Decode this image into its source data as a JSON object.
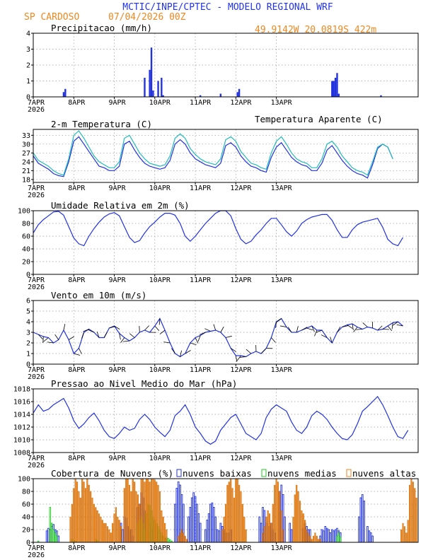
{
  "header": {
    "title": "MCTIC/INPE/CPTEC - MODELO REGIONAL WRF",
    "location": "SP CARDOSO",
    "date": "07/04/2026 00Z",
    "coords": "49.9142W 20.0819S 422m"
  },
  "x_ticks": [
    "7APR",
    "8APR",
    "9APR",
    "10APR",
    "11APR",
    "12APR",
    "13APR"
  ],
  "year_label": "2026",
  "colors": {
    "title": "#2233ee",
    "orange": "#ee8822",
    "blue": "#2233dd",
    "cyan": "#22bbbb",
    "green": "#22cc22"
  },
  "chart_data": [
    {
      "type": "bar",
      "title": "Precipitacao (mm/h)",
      "ylim": [
        0,
        4
      ],
      "yticks": [
        "0",
        "1",
        "2",
        "3",
        "4"
      ],
      "x_hours": [
        18,
        19,
        66,
        69,
        70,
        71,
        74,
        76,
        77,
        99,
        111,
        121,
        122,
        177,
        178,
        179,
        180,
        181,
        206
      ],
      "values": [
        0.3,
        0.5,
        1.2,
        1.7,
        3.1,
        0.4,
        1.0,
        1.2,
        0.1,
        0.1,
        0.2,
        0.3,
        0.5,
        1.0,
        1.0,
        1.2,
        1.5,
        0.2,
        0.1
      ]
    },
    {
      "type": "line",
      "title": "2-m Temperatura (C)",
      "legend": "Temperatura Aparente (C)",
      "ylim": [
        17,
        35
      ],
      "yticks": [
        "18",
        "21",
        "24",
        "27",
        "30",
        "33"
      ],
      "x_step_hours": 3,
      "series": [
        {
          "values": [
            26,
            23.5,
            22.5,
            21.5,
            20,
            19.3,
            19,
            24,
            31,
            32.5,
            30,
            27.5,
            25,
            22.5,
            22,
            21,
            21,
            22.5,
            30,
            31,
            28,
            25.5,
            23.5,
            22.5,
            22,
            21.5,
            22,
            24.5,
            30,
            31.5,
            30,
            27,
            25,
            24,
            23,
            22.5,
            22,
            23.5,
            29.5,
            30.5,
            29,
            26,
            24,
            22.5,
            22,
            21,
            20.5,
            25.5,
            29,
            30.5,
            28,
            25.5,
            24,
            23,
            22.5,
            21,
            21,
            23.5,
            28,
            29.5,
            27,
            24.5,
            22.5,
            21,
            20,
            19.5,
            18.5,
            23,
            28.5,
            30,
            29,
            25
          ]
        },
        {
          "values": [
            27,
            24.5,
            23.5,
            22.5,
            21,
            20,
            19.5,
            25,
            33,
            34.5,
            32,
            29,
            26,
            24,
            23,
            22,
            22,
            24,
            32,
            33,
            30,
            27,
            25,
            23.5,
            23,
            22.5,
            23,
            26,
            32,
            33.5,
            32,
            28.5,
            26.5,
            25,
            24,
            23.5,
            23,
            25,
            31.5,
            32.5,
            31,
            27.5,
            25.5,
            23.5,
            23,
            22,
            21.5,
            27,
            31,
            32.5,
            30,
            27,
            25,
            24,
            23.5,
            22,
            22,
            25,
            30,
            31,
            29,
            26,
            24,
            22,
            21,
            20.5,
            19.5,
            24,
            29,
            30,
            29,
            25
          ]
        }
      ]
    },
    {
      "type": "line",
      "title": "Umidade Relativa em 2m (%)",
      "ylim": [
        0,
        100
      ],
      "yticks": [
        "0",
        "20",
        "40",
        "60",
        "80",
        "100"
      ],
      "x_step_hours": 3,
      "series": [
        {
          "values": [
            65,
            78,
            86,
            92,
            98,
            99,
            93,
            75,
            57,
            48,
            45,
            60,
            72,
            82,
            90,
            95,
            97,
            92,
            75,
            58,
            50,
            53,
            65,
            75,
            82,
            90,
            96,
            96,
            93,
            80,
            60,
            52,
            60,
            70,
            80,
            88,
            96,
            100,
            100,
            92,
            72,
            55,
            48,
            52,
            62,
            70,
            80,
            88,
            88,
            78,
            67,
            60,
            68,
            80,
            86,
            90,
            92,
            94,
            94,
            85,
            70,
            58,
            58,
            70,
            78,
            82,
            84,
            86,
            88,
            74,
            55,
            48,
            45,
            58
          ]
        }
      ]
    },
    {
      "type": "line",
      "title": "Vento em 10m (m/s)",
      "ylim": [
        0,
        6
      ],
      "yticks": [
        "0",
        "1",
        "2",
        "3",
        "4",
        "5",
        "6"
      ],
      "x_step_hours": 3,
      "series": [
        {
          "values": [
            3.0,
            2.8,
            2.6,
            2.5,
            2.0,
            2.3,
            3.2,
            2.3,
            1.0,
            1.5,
            3.0,
            3.3,
            3.0,
            2.5,
            2.5,
            3.4,
            3.6,
            2.9,
            2.5,
            2.2,
            2.5,
            3.0,
            3.2,
            3.0,
            3.6,
            4.3,
            3.2,
            2.0,
            1.0,
            0.7,
            1.0,
            2.0,
            2.5,
            2.7,
            3.0,
            3.1,
            3.2,
            3.0,
            2.5,
            1.5,
            0.8,
            0.8,
            0.7,
            1.0,
            1.2,
            1.0,
            1.5,
            2.5,
            4.0,
            4.3,
            3.5,
            3.0,
            3.0,
            3.2,
            3.4,
            3.6,
            3.2,
            3.2,
            2.5,
            2.0,
            3.0,
            3.5,
            3.7,
            3.8,
            3.5,
            3.3,
            3.5,
            3.4,
            3.2,
            3.3,
            3.6,
            3.9,
            4.0,
            3.6
          ]
        }
      ]
    },
    {
      "type": "line",
      "title": "Pressao ao Nivel Medio do Mar (hPa)",
      "ylim": [
        1008,
        1018
      ],
      "yticks": [
        "1008",
        "1010",
        "1012",
        "1014",
        "1016",
        "1018"
      ],
      "x_step_hours": 3,
      "series": [
        {
          "values": [
            1014.2,
            1015.5,
            1014.5,
            1014.8,
            1015.5,
            1016.0,
            1016.5,
            1015.0,
            1013.0,
            1011.8,
            1012.5,
            1013.5,
            1014.2,
            1013.0,
            1011.5,
            1010.5,
            1010.2,
            1011.0,
            1012.0,
            1011.5,
            1011.8,
            1013.2,
            1014.0,
            1013.2,
            1012.0,
            1011.2,
            1010.5,
            1011.5,
            1013.8,
            1014.5,
            1015.5,
            1014.0,
            1012.0,
            1011.0,
            1009.8,
            1009.3,
            1009.8,
            1011.5,
            1012.5,
            1013.5,
            1014.0,
            1012.5,
            1011.0,
            1010.5,
            1010.0,
            1011.0,
            1013.5,
            1014.8,
            1015.5,
            1015.0,
            1014.5,
            1012.8,
            1011.5,
            1011.0,
            1012.0,
            1013.8,
            1014.5,
            1014.0,
            1013.2,
            1012.0,
            1011.0,
            1010.2,
            1010.0,
            1010.8,
            1012.5,
            1014.5,
            1015.2,
            1016.0,
            1016.8,
            1015.5,
            1013.8,
            1012.0,
            1010.5,
            1010.2,
            1011.5
          ]
        }
      ]
    },
    {
      "type": "bar",
      "title": "Cobertura de Nuvens (%)",
      "ylim": [
        0,
        100
      ],
      "yticks": [
        "0",
        "20",
        "40",
        "60",
        "80",
        "100"
      ],
      "legend": [
        "nuvens baixas",
        "nuvens medias",
        "nuvens altas"
      ],
      "series": [
        {
          "name": "nuvens baixas",
          "color": "#2233dd",
          "x_hours": [
            8,
            9,
            10,
            11,
            12,
            13,
            14,
            15,
            52,
            53,
            54,
            55,
            56,
            57,
            58,
            59,
            62,
            63,
            64,
            65,
            66,
            67,
            68,
            69,
            70,
            71,
            72,
            73,
            76,
            77,
            78,
            84,
            85,
            86,
            87,
            88,
            89,
            92,
            93,
            94,
            95,
            96,
            97,
            98,
            99,
            102,
            103,
            104,
            105,
            106,
            107,
            108,
            109,
            110,
            111,
            112,
            113,
            114,
            116,
            117,
            134,
            135,
            136,
            137,
            138,
            140,
            141,
            142,
            143,
            146,
            147,
            148,
            149,
            152,
            153,
            160,
            161,
            162,
            163,
            164,
            170,
            171,
            172,
            173,
            174,
            175,
            176,
            177,
            178,
            179,
            180,
            181,
            182,
            193,
            194,
            195,
            196,
            198,
            199,
            200,
            201
          ],
          "values": [
            18,
            22,
            20,
            25,
            28,
            20,
            18,
            10,
            30,
            20,
            40,
            38,
            25,
            20,
            20,
            10,
            55,
            60,
            78,
            70,
            50,
            40,
            35,
            30,
            22,
            20,
            18,
            15,
            10,
            8,
            6,
            60,
            85,
            95,
            90,
            75,
            60,
            40,
            55,
            70,
            78,
            72,
            60,
            45,
            30,
            20,
            35,
            45,
            60,
            62,
            55,
            40,
            20,
            18,
            30,
            25,
            20,
            15,
            15,
            20,
            40,
            30,
            55,
            50,
            30,
            25,
            30,
            20,
            15,
            80,
            90,
            75,
            40,
            30,
            20,
            22,
            30,
            25,
            20,
            20,
            10,
            20,
            18,
            25,
            22,
            20,
            15,
            20,
            18,
            20,
            22,
            18,
            15,
            40,
            70,
            75,
            65,
            25,
            18,
            15,
            10
          ]
        },
        {
          "name": "nuvens medias",
          "color": "#22cc22",
          "x_hours": [
            3,
            10,
            11,
            12,
            13,
            14,
            23,
            24,
            25,
            37,
            38,
            62,
            63,
            64,
            65,
            66,
            67,
            68,
            69,
            70,
            71,
            72,
            73,
            74,
            75,
            76,
            77,
            78,
            79,
            80,
            81,
            82,
            180,
            181,
            182
          ],
          "values": [
            2,
            55,
            30,
            20,
            15,
            10,
            5,
            3,
            2,
            5,
            3,
            30,
            35,
            40,
            30,
            20,
            45,
            60,
            58,
            50,
            40,
            35,
            30,
            25,
            20,
            15,
            10,
            5,
            8,
            6,
            4,
            2,
            10,
            15,
            8
          ]
        },
        {
          "name": "nuvens altas",
          "color": "#ee8822",
          "x_hours": [
            22,
            23,
            24,
            25,
            26,
            27,
            28,
            29,
            30,
            31,
            32,
            33,
            34,
            35,
            36,
            37,
            38,
            39,
            40,
            41,
            42,
            43,
            44,
            45,
            46,
            47,
            48,
            49,
            50,
            51,
            52,
            54,
            55,
            56,
            57,
            58,
            59,
            60,
            61,
            62,
            63,
            64,
            65,
            66,
            67,
            68,
            69,
            70,
            71,
            72,
            73,
            74,
            75,
            76,
            77,
            78,
            79,
            86,
            87,
            88,
            89,
            90,
            91,
            112,
            113,
            114,
            115,
            116,
            117,
            118,
            119,
            120,
            121,
            122,
            123,
            124,
            125,
            126,
            136,
            137,
            138,
            139,
            140,
            141,
            142,
            143,
            144,
            145,
            146,
            147,
            148,
            154,
            155,
            156,
            157,
            158,
            159,
            160,
            161,
            162,
            163,
            164,
            165,
            166,
            167,
            168,
            169,
            170,
            218,
            219,
            220,
            221,
            222,
            223,
            224,
            225,
            226,
            227
          ],
          "values": [
            40,
            60,
            85,
            100,
            95,
            80,
            70,
            100,
            95,
            85,
            100,
            90,
            80,
            70,
            60,
            55,
            50,
            45,
            40,
            35,
            30,
            30,
            25,
            20,
            15,
            30,
            45,
            55,
            40,
            35,
            25,
            85,
            100,
            100,
            90,
            80,
            100,
            95,
            80,
            75,
            60,
            100,
            100,
            95,
            100,
            100,
            95,
            100,
            100,
            98,
            95,
            90,
            80,
            50,
            40,
            30,
            20,
            10,
            15,
            20,
            15,
            10,
            5,
            20,
            40,
            60,
            90,
            95,
            100,
            85,
            70,
            100,
            100,
            90,
            80,
            60,
            40,
            20,
            15,
            25,
            40,
            50,
            45,
            30,
            60,
            90,
            100,
            95,
            80,
            50,
            20,
            40,
            75,
            90,
            80,
            65,
            50,
            45,
            35,
            20,
            15,
            10,
            5,
            10,
            15,
            10,
            5,
            5,
            20,
            30,
            25,
            15,
            35,
            90,
            100,
            95,
            85,
            70
          ]
        }
      ]
    }
  ]
}
